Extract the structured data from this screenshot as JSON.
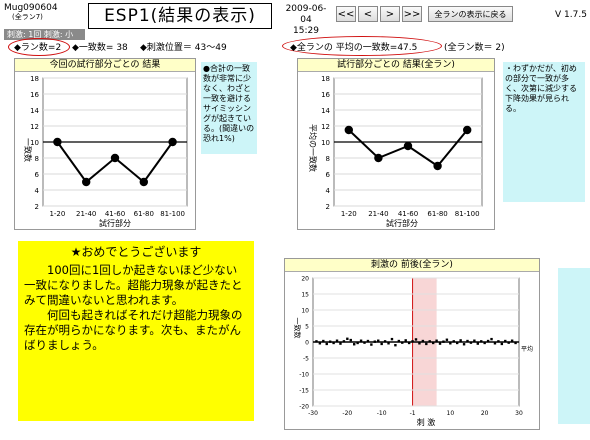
{
  "header": {
    "id_label": "Mug090604",
    "sub_label": "(全ラン7)",
    "title": "ESP1(結果の表示)",
    "date": "2009-06-04",
    "time": "15:29",
    "nav": [
      "<<",
      "<",
      ">",
      ">>"
    ],
    "show_all_button": "全ランの表示に戻る",
    "version": "V 1.7.5"
  },
  "settings_label": "刺激: 1回  刺激: 小",
  "stats_left": {
    "run_count": "◆ラン数=2",
    "match_count": "◆一致数= 38",
    "stim_position": "◆刺激位置＝ 43〜49"
  },
  "stats_right": {
    "avg_match": "◆全ランの 平均の一致数=47.5",
    "total_runs": "(全ラン数＝ 2)"
  },
  "chart_left": {
    "title": "今回の試行部分ごとの 結果",
    "ylabel": "一致数",
    "xlabel": "試行部分",
    "note": "●合計の一致数が非常に少なく、わざと一致を避けるサイミッシングが起きている。(間違いの恐れ1%)"
  },
  "chart_right": {
    "title": "試行部分ごとの 結果(全ラン)",
    "ylabel": "平均の一致数",
    "xlabel": "試行部分",
    "note": "・わずかだが、初めの部分で一致が多く、次第に減少する下降効果が見られる。"
  },
  "congrats": {
    "heading": "★おめでとうございます",
    "p1": "100回に1回しか起きないほど少ない一致になりました。超能力現象が起きたとみて間違いないと思われます。",
    "p2": "何回も起きればそれだけ超能力現象の存在が明らかになります。次も、またがんばりましょう。"
  },
  "chart_bottom": {
    "title": "刺激の 前後(全ラン)",
    "ylabel": "一致数",
    "xlabel": "刺 激",
    "avg_label": "平均"
  },
  "chart_data": [
    {
      "type": "line",
      "title": "今回の試行部分ごとの 結果",
      "categories": [
        "1-20",
        "21-40",
        "41-60",
        "61-80",
        "81-100"
      ],
      "values": [
        10,
        5,
        8,
        5,
        10
      ],
      "ylabel": "一致数",
      "xlabel": "試行部分",
      "ylim": [
        2,
        18
      ],
      "yticks": [
        2,
        4,
        6,
        8,
        10,
        12,
        14,
        16,
        18
      ],
      "reference_line": 10,
      "grid": true
    },
    {
      "type": "line",
      "title": "試行部分ごとの 結果(全ラン)",
      "categories": [
        "1-20",
        "21-40",
        "41-60",
        "61-80",
        "81-100"
      ],
      "values": [
        11.5,
        8,
        9.5,
        7,
        11.5
      ],
      "ylabel": "平均の一致数",
      "xlabel": "試行部分",
      "ylim": [
        2,
        18
      ],
      "yticks": [
        2,
        4,
        6,
        8,
        10,
        12,
        14,
        16,
        18
      ],
      "reference_line": 10,
      "grid": true
    },
    {
      "type": "scatter",
      "title": "刺激の 前後(全ラン)",
      "x": [
        -29,
        -28,
        -27,
        -26,
        -25,
        -24,
        -23,
        -22,
        -21,
        -20,
        -19,
        -18,
        -17,
        -16,
        -15,
        -14,
        -13,
        -12,
        -11,
        -10,
        -9,
        -8,
        -7,
        -6,
        -5,
        -4,
        -3,
        -2,
        -1,
        0,
        1,
        2,
        3,
        4,
        5,
        6,
        7,
        8,
        9,
        10,
        11,
        12,
        13,
        14,
        15,
        16,
        17,
        18,
        19,
        20,
        21,
        22,
        23,
        24,
        25,
        26,
        27,
        28,
        29
      ],
      "values": [
        0.2,
        -0.4,
        0.3,
        -0.6,
        0.1,
        -0.3,
        0.4,
        -0.5,
        0.2,
        1.0,
        0.6,
        -0.7,
        -0.3,
        0.4,
        -0.2,
        0.3,
        -0.8,
        0.1,
        0.4,
        -0.6,
        0.2,
        -0.4,
        0.9,
        -1.0,
        0.3,
        -0.2,
        0.5,
        -0.3,
        0.2,
        0.8,
        -0.4,
        0.3,
        -0.6,
        0.2,
        -0.3,
        0.4,
        -0.5,
        0.1,
        0.7,
        -0.4,
        0.2,
        -0.3,
        0.5,
        -0.7,
        0.3,
        -0.2,
        0.4,
        -0.5,
        0.2,
        -0.3,
        0.3,
        0.9,
        -0.4,
        0.2,
        -0.6,
        0.3,
        -0.2,
        0.4,
        -0.3
      ],
      "ylabel": "一致数",
      "xlabel": "刺 激",
      "xlim": [
        -30,
        30
      ],
      "ylim": [
        -20,
        20
      ],
      "xticks": [
        -30,
        -20,
        -10,
        -1,
        10,
        20,
        30
      ],
      "yticks": [
        -20,
        -15,
        -10,
        -5,
        0,
        5,
        10,
        15,
        20
      ],
      "highlight_x": [
        -1,
        6
      ],
      "zero_line_label": "平均",
      "grid": true
    }
  ],
  "colors": {
    "note_bg": "#cdf5f8",
    "congrats_bg": "#ffff00",
    "title_bar_bg": "#ffffc8",
    "highlight": "#f5c4c4",
    "ellipse": "#d01010"
  }
}
